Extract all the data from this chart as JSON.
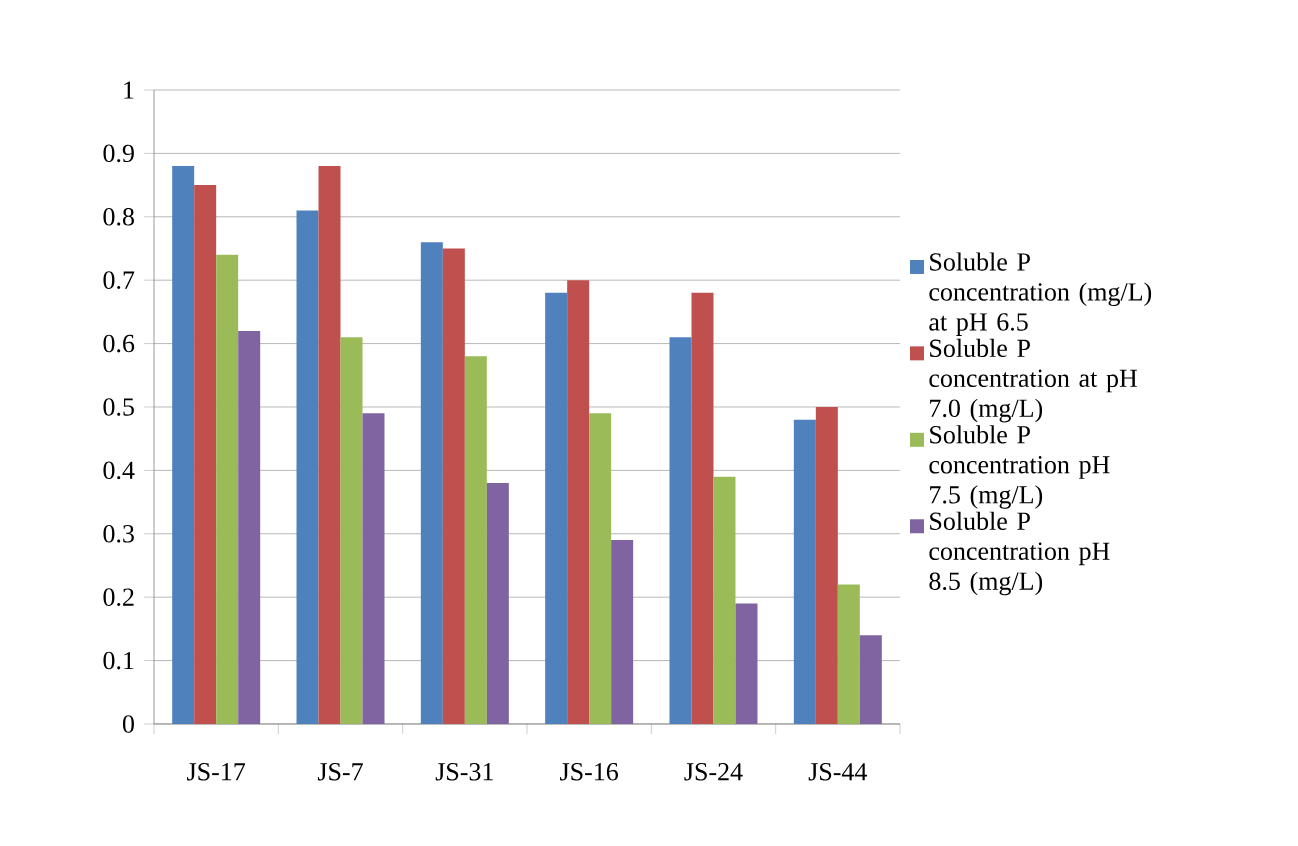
{
  "chart_data": {
    "type": "bar",
    "categories": [
      "JS-17",
      "JS-7",
      "JS-31",
      "JS-16",
      "JS-24",
      "JS-44"
    ],
    "series": [
      {
        "name": "Soluble P concentration (mg/L) at pH 6.5",
        "color": "#4f81bd",
        "values": [
          0.88,
          0.81,
          0.76,
          0.68,
          0.61,
          0.48
        ]
      },
      {
        "name": "Soluble P concentration at pH 7.0 (mg/L)",
        "color": "#c0504d",
        "values": [
          0.85,
          0.88,
          0.75,
          0.7,
          0.68,
          0.5
        ]
      },
      {
        "name": "Soluble P concentration pH 7.5 (mg/L)",
        "color": "#9bbb59",
        "values": [
          0.74,
          0.61,
          0.58,
          0.49,
          0.39,
          0.22
        ]
      },
      {
        "name": "Soluble P concentration pH 8.5 (mg/L)",
        "color": "#8064a2",
        "values": [
          0.62,
          0.49,
          0.38,
          0.29,
          0.19,
          0.14
        ]
      }
    ],
    "ylim": [
      0,
      1
    ],
    "yticks": [
      0,
      0.1,
      0.2,
      0.3,
      0.4,
      0.5,
      0.6,
      0.7,
      0.8,
      0.9,
      1
    ],
    "grid": "y",
    "legend": "right"
  }
}
